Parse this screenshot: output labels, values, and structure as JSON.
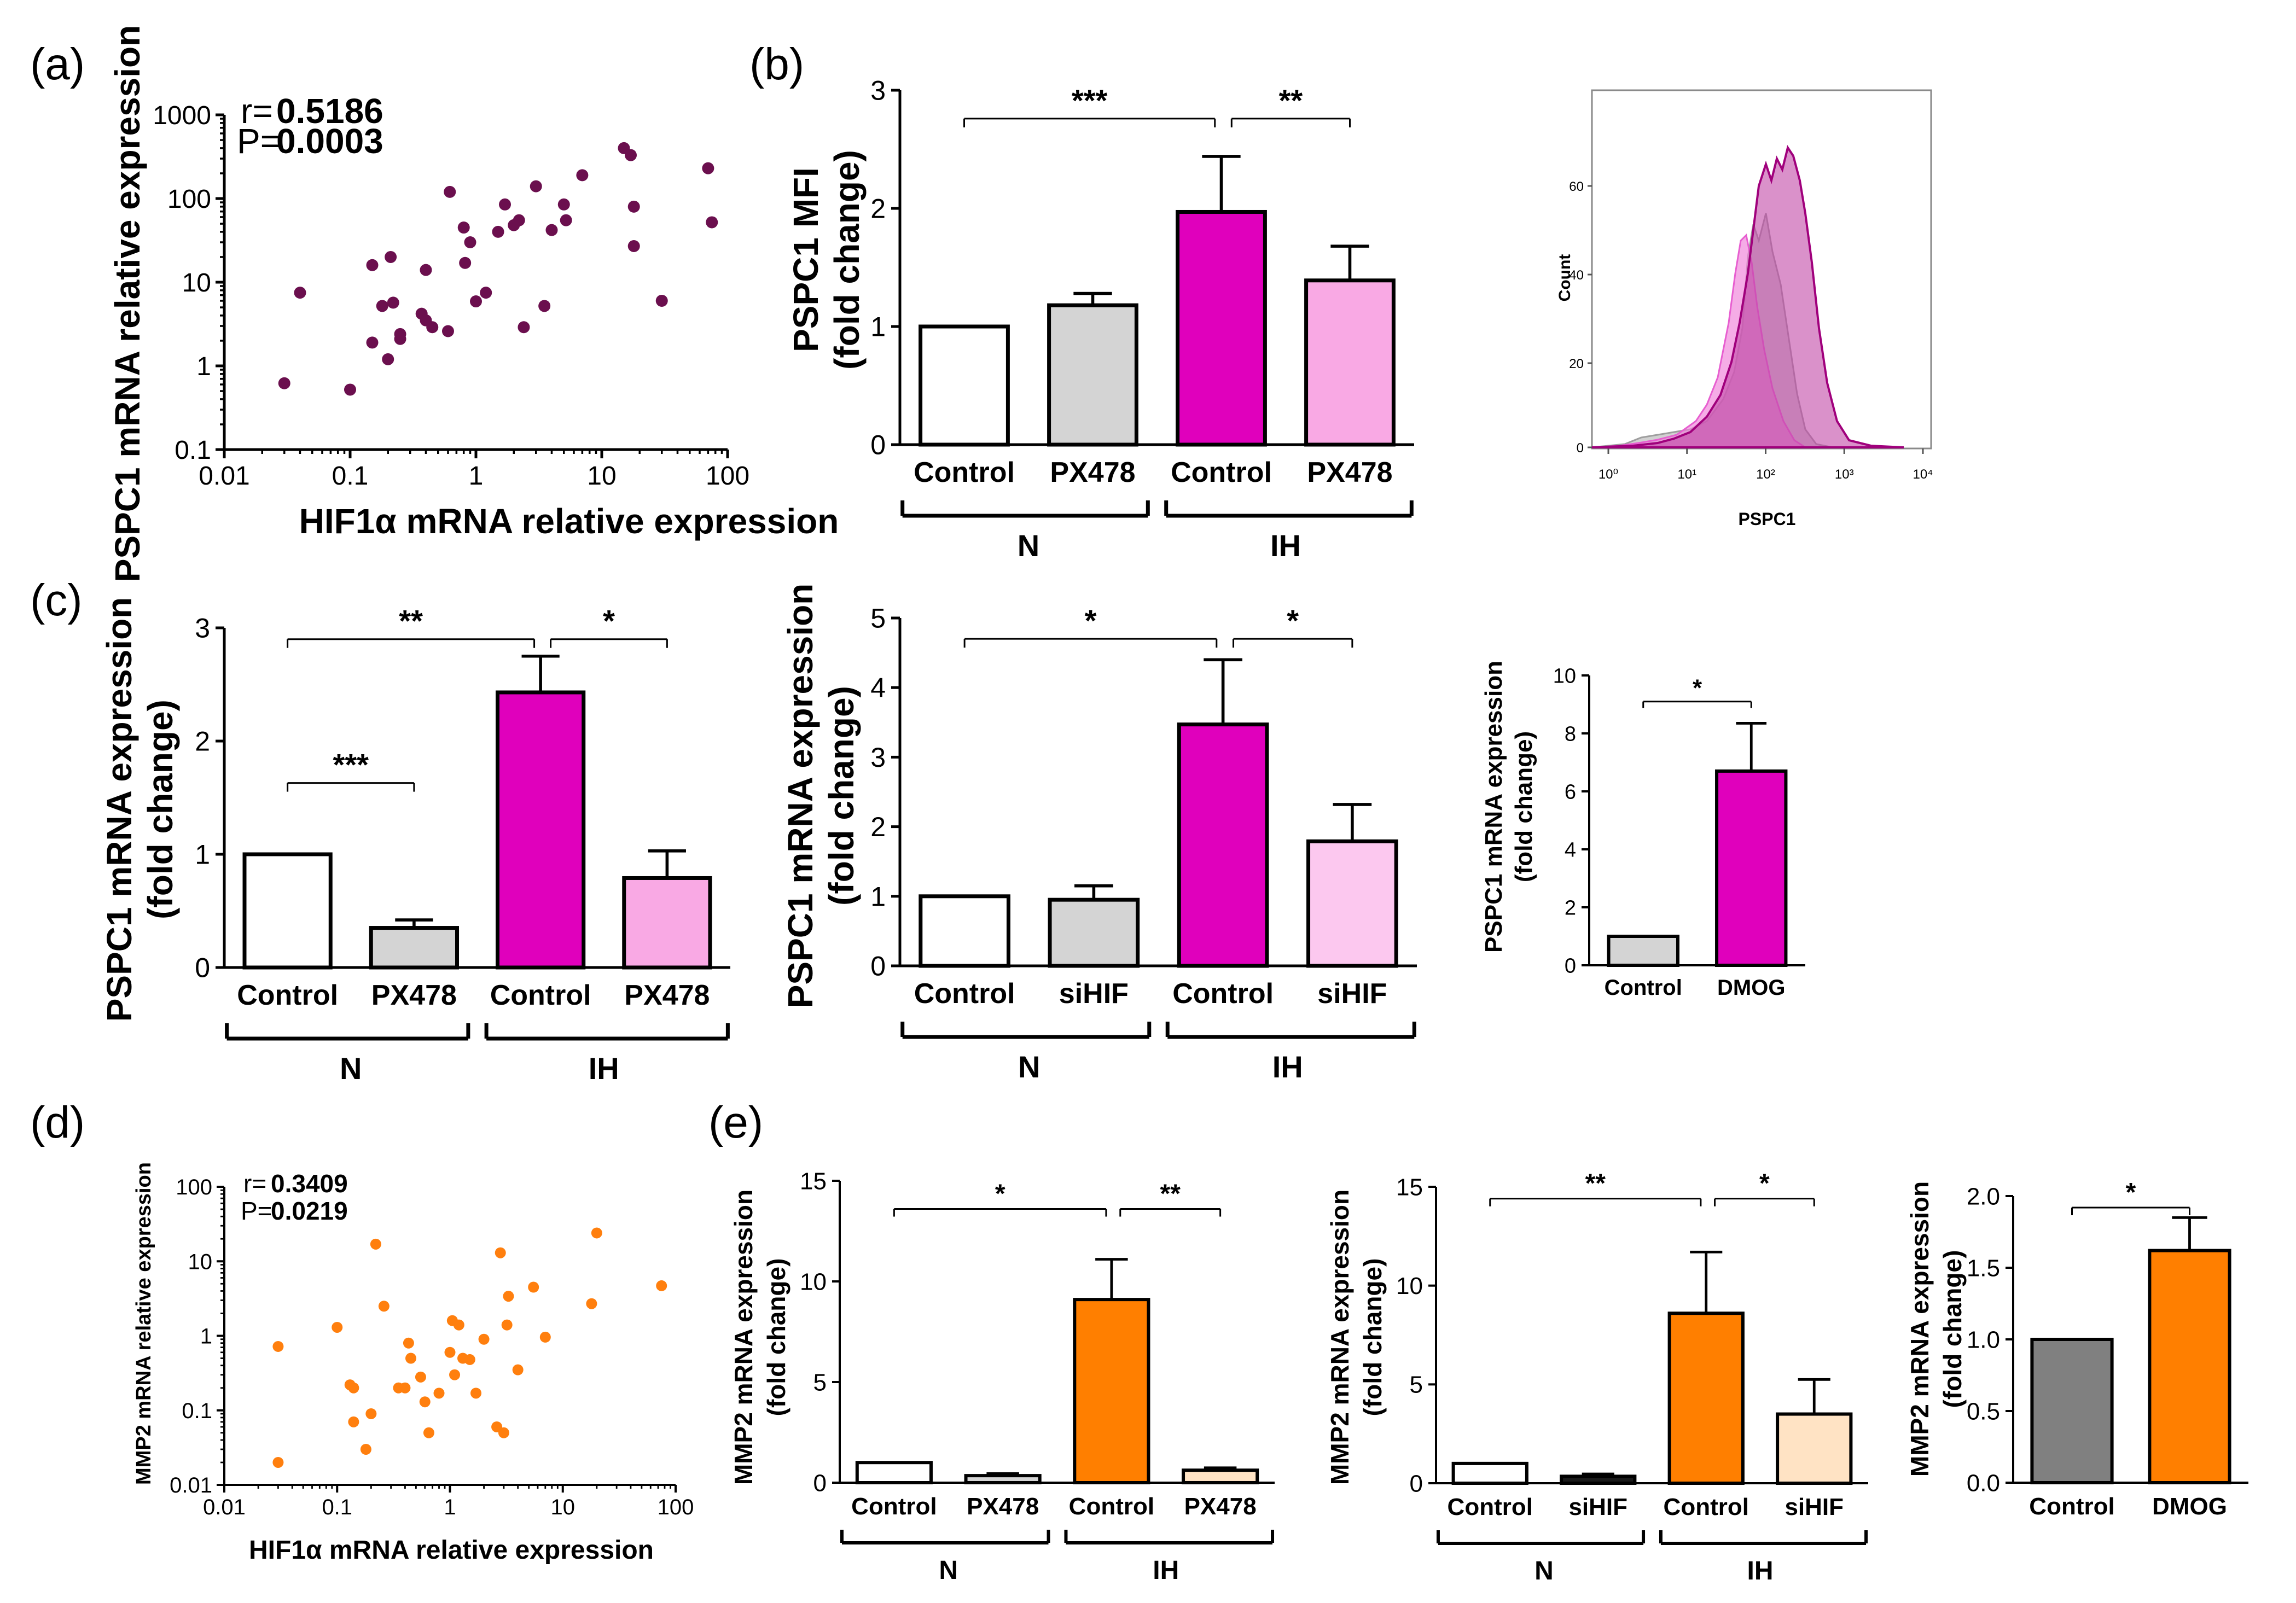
{
  "chart_data": [
    {
      "panel": "a",
      "type": "scatter",
      "letter": "(a)",
      "xlabel": "HIF1α mRNA relative expression",
      "ylabel": "PSPC1 mRNA relative expression",
      "xscale": "log",
      "yscale": "log",
      "xlim": [
        0.01,
        100
      ],
      "ylim": [
        0.1,
        1000
      ],
      "xticks": [
        "0.01",
        "0.1",
        "1",
        "10",
        "100"
      ],
      "yticks": [
        "0.1",
        "1",
        "10",
        "100",
        "1000"
      ],
      "stats": {
        "r_label": "r=",
        "r": "0.5186",
        "p_label": "P=",
        "p": "0.0003"
      },
      "color": "#6b0f4e",
      "points": [
        [
          0.03,
          0.62
        ],
        [
          0.04,
          7.5
        ],
        [
          0.1,
          0.52
        ],
        [
          0.15,
          1.9
        ],
        [
          0.15,
          16
        ],
        [
          0.18,
          5.2
        ],
        [
          0.2,
          1.2
        ],
        [
          0.21,
          20
        ],
        [
          0.25,
          2.1
        ],
        [
          0.25,
          2.4
        ],
        [
          0.22,
          5.7
        ],
        [
          0.37,
          4.2
        ],
        [
          0.4,
          3.5
        ],
        [
          0.4,
          14
        ],
        [
          0.45,
          2.9
        ],
        [
          0.6,
          2.6
        ],
        [
          0.62,
          120
        ],
        [
          0.8,
          45
        ],
        [
          0.82,
          17
        ],
        [
          0.9,
          30
        ],
        [
          1.0,
          5.9
        ],
        [
          1.2,
          7.5
        ],
        [
          1.5,
          40
        ],
        [
          1.7,
          85
        ],
        [
          2.0,
          48
        ],
        [
          2.2,
          55
        ],
        [
          2.4,
          2.9
        ],
        [
          3.0,
          140
        ],
        [
          3.5,
          5.2
        ],
        [
          4.0,
          42
        ],
        [
          5.0,
          85
        ],
        [
          5.2,
          55
        ],
        [
          7.0,
          190
        ],
        [
          15,
          400
        ],
        [
          17,
          330
        ],
        [
          18,
          80
        ],
        [
          18,
          27
        ],
        [
          30,
          6
        ],
        [
          70,
          230
        ],
        [
          75,
          52
        ]
      ]
    },
    {
      "panel": "b-bar",
      "type": "bar",
      "letter": "(b)",
      "ylabel": "PSPC1 MFI",
      "ylabel2": "(fold change)",
      "ylim": [
        0,
        3
      ],
      "yticks": [
        "0",
        "1",
        "2",
        "3"
      ],
      "categories": [
        "Control",
        "PX478",
        "Control",
        "PX478"
      ],
      "values": [
        1.0,
        1.18,
        1.97,
        1.39
      ],
      "errors": [
        0,
        0.1,
        0.47,
        0.29
      ],
      "colors": [
        "#ffffff",
        "#d4d4d4",
        "#e000bc",
        "#f9a9e4"
      ],
      "groups": [
        "N",
        "IH"
      ],
      "significance": [
        {
          "from": 0,
          "to": 2,
          "y": 2.76,
          "label": "***"
        },
        {
          "from": 2,
          "to": 3,
          "y": 2.76,
          "label": "**"
        }
      ]
    },
    {
      "panel": "b-histogram",
      "type": "area",
      "ylabel": "Count",
      "xlabel": "PSPC1",
      "yticks": [
        "0",
        "20",
        "40",
        "60"
      ],
      "xticks": [
        "10⁰",
        "10¹",
        "10²",
        "10³",
        "10⁴"
      ]
    },
    {
      "panel": "c1",
      "type": "bar",
      "letter": "(c)",
      "ylabel": "PSPC1 mRNA expression",
      "ylabel2": "(fold change)",
      "ylim": [
        0,
        3
      ],
      "yticks": [
        "0",
        "1",
        "2",
        "3"
      ],
      "categories": [
        "Control",
        "PX478",
        "Control",
        "PX478"
      ],
      "values": [
        1.0,
        0.35,
        2.43,
        0.79
      ],
      "errors": [
        0,
        0.07,
        0.32,
        0.24
      ],
      "colors": [
        "#ffffff",
        "#d4d4d4",
        "#e000bc",
        "#f9a9e4"
      ],
      "groups": [
        "N",
        "IH"
      ],
      "significance": [
        {
          "from": 0,
          "to": 2,
          "y": 2.9,
          "label": "**"
        },
        {
          "from": 2,
          "to": 3,
          "y": 2.9,
          "label": "*"
        },
        {
          "from": 0,
          "to": 1,
          "y": 1.63,
          "label": "***"
        }
      ]
    },
    {
      "panel": "c2",
      "type": "bar",
      "ylabel": "PSPC1 mRNA expression",
      "ylabel2": "(fold change)",
      "ylim": [
        0,
        5
      ],
      "yticks": [
        "0",
        "1",
        "2",
        "3",
        "4",
        "5"
      ],
      "categories": [
        "Control",
        "siHIF",
        "Control",
        "siHIF"
      ],
      "values": [
        1.0,
        0.95,
        3.47,
        1.79
      ],
      "errors": [
        0,
        0.2,
        0.93,
        0.53
      ],
      "colors": [
        "#ffffff",
        "#d4d4d4",
        "#e000bc",
        "#fcc8ef"
      ],
      "groups": [
        "N",
        "IH"
      ],
      "significance": [
        {
          "from": 0,
          "to": 2,
          "y": 4.7,
          "label": "*"
        },
        {
          "from": 2,
          "to": 3,
          "y": 4.7,
          "label": "*"
        }
      ]
    },
    {
      "panel": "c3",
      "type": "bar",
      "ylabel": "PSPC1 mRNA expression",
      "ylabel2": "(fold change)",
      "ylim": [
        0,
        10
      ],
      "yticks": [
        "0",
        "2",
        "4",
        "6",
        "8",
        "10"
      ],
      "categories": [
        "Control",
        "DMOG"
      ],
      "values": [
        1.0,
        6.7
      ],
      "errors": [
        0,
        1.65
      ],
      "colors": [
        "#d4d4d4",
        "#e000bc"
      ],
      "significance": [
        {
          "from": 0,
          "to": 1,
          "y": 9.1,
          "label": "*"
        }
      ]
    },
    {
      "panel": "d",
      "type": "scatter",
      "letter": "(d)",
      "xlabel": "HIF1α mRNA relative expression",
      "ylabel": "MMP2 mRNA relative expression",
      "xscale": "log",
      "yscale": "log",
      "xlim": [
        0.01,
        100
      ],
      "ylim": [
        0.01,
        100
      ],
      "xticks": [
        "0.01",
        "0.1",
        "1",
        "10",
        "100"
      ],
      "yticks": [
        "0.01",
        "0.1",
        "1",
        "10",
        "100"
      ],
      "stats": {
        "r_label": "r=",
        "r": "0.3409",
        "p_label": "P=",
        "p": "0.0219"
      },
      "color": "#ff7f0e",
      "points": [
        [
          0.03,
          0.72
        ],
        [
          0.03,
          0.02
        ],
        [
          0.1,
          1.3
        ],
        [
          0.13,
          0.22
        ],
        [
          0.14,
          0.2
        ],
        [
          0.14,
          0.07
        ],
        [
          0.18,
          0.03
        ],
        [
          0.2,
          0.09
        ],
        [
          0.22,
          17
        ],
        [
          0.26,
          2.5
        ],
        [
          0.35,
          0.2
        ],
        [
          0.4,
          0.2
        ],
        [
          0.43,
          0.8
        ],
        [
          0.45,
          0.5
        ],
        [
          0.55,
          0.28
        ],
        [
          0.6,
          0.13
        ],
        [
          0.65,
          0.05
        ],
        [
          0.8,
          0.17
        ],
        [
          1.0,
          0.6
        ],
        [
          1.05,
          1.6
        ],
        [
          1.1,
          0.3
        ],
        [
          1.2,
          1.4
        ],
        [
          1.3,
          0.5
        ],
        [
          1.5,
          0.48
        ],
        [
          1.7,
          0.17
        ],
        [
          2.0,
          0.9
        ],
        [
          2.6,
          0.06
        ],
        [
          2.8,
          13
        ],
        [
          3.0,
          0.05
        ],
        [
          3.2,
          1.4
        ],
        [
          3.3,
          3.4
        ],
        [
          4.0,
          0.35
        ],
        [
          5.5,
          4.5
        ],
        [
          7.0,
          0.96
        ],
        [
          18,
          2.7
        ],
        [
          20,
          24
        ],
        [
          75,
          4.7
        ]
      ]
    },
    {
      "panel": "e1",
      "type": "bar",
      "letter": "(e)",
      "ylabel": "MMP2 mRNA expression",
      "ylabel2": "(fold change)",
      "ylim": [
        0,
        15
      ],
      "yticks": [
        "0",
        "5",
        "10",
        "15"
      ],
      "categories": [
        "Control",
        "PX478",
        "Control",
        "PX478"
      ],
      "values": [
        1.0,
        0.35,
        9.1,
        0.62
      ],
      "errors": [
        0,
        0.1,
        2.0,
        0.12
      ],
      "colors": [
        "#ffffff",
        "#d4d4d4",
        "#ff7f00",
        "#ffe3c4"
      ],
      "groups": [
        "N",
        "IH"
      ],
      "significance": [
        {
          "from": 0,
          "to": 2,
          "y": 13.6,
          "label": "*"
        },
        {
          "from": 2,
          "to": 3,
          "y": 13.6,
          "label": "**"
        }
      ]
    },
    {
      "panel": "e2",
      "type": "bar",
      "ylabel": "MMP2 mRNA expression",
      "ylabel2": "(fold change)",
      "ylim": [
        0,
        15
      ],
      "yticks": [
        "0",
        "5",
        "10",
        "15"
      ],
      "categories": [
        "Control",
        "siHIF",
        "Control",
        "siHIF"
      ],
      "values": [
        1.0,
        0.35,
        8.6,
        3.5
      ],
      "errors": [
        0,
        0.12,
        3.1,
        1.75
      ],
      "colors": [
        "#ffffff",
        "#1a1a1a",
        "#ff7f00",
        "#ffe3c4"
      ],
      "groups": [
        "N",
        "IH"
      ],
      "significance": [
        {
          "from": 0,
          "to": 2,
          "y": 14.4,
          "label": "**"
        },
        {
          "from": 2,
          "to": 3,
          "y": 14.4,
          "label": "*"
        }
      ]
    },
    {
      "panel": "e3",
      "type": "bar",
      "ylabel": "MMP2 mRNA expression",
      "ylabel2": "(fold change)",
      "ylim": [
        0,
        2
      ],
      "yticks": [
        "0.0",
        "0.5",
        "1.0",
        "1.5",
        "2.0"
      ],
      "categories": [
        "Control",
        "DMOG"
      ],
      "values": [
        1.0,
        1.62
      ],
      "errors": [
        0,
        0.23
      ],
      "colors": [
        "#808080",
        "#ff7f00"
      ],
      "significance": [
        {
          "from": 0,
          "to": 1,
          "y": 1.92,
          "label": "*"
        }
      ]
    }
  ]
}
